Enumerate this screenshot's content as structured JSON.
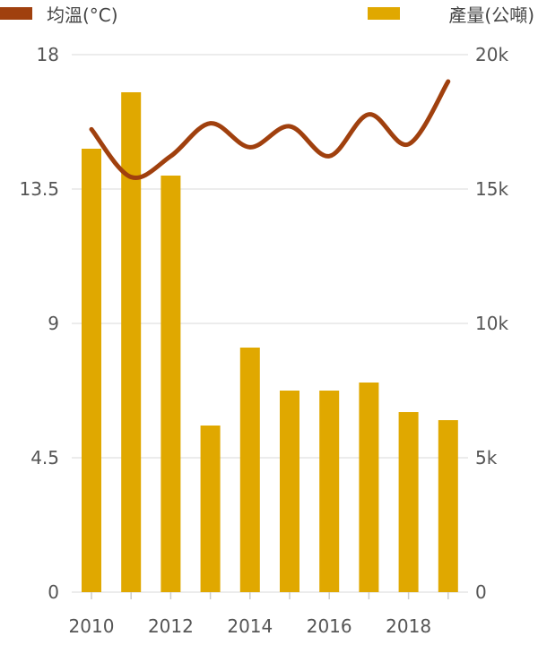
{
  "chart_data": {
    "type": "bar+line",
    "categories": [
      "2010",
      "2011",
      "2012",
      "2013",
      "2014",
      "2015",
      "2016",
      "2017",
      "2018",
      "2019"
    ],
    "x_tick_labels": [
      "2010",
      "2012",
      "2014",
      "2016",
      "2018"
    ],
    "series": [
      {
        "name": "產量(公噸)",
        "type": "bar",
        "axis": "right",
        "color": "#E0A800",
        "values": [
          16500,
          18600,
          15500,
          6200,
          9100,
          7500,
          7500,
          7800,
          6700,
          6400
        ]
      },
      {
        "name": "均溫(°C)",
        "type": "line",
        "axis": "left",
        "color": "#A0400E",
        "values": [
          15.5,
          13.9,
          14.6,
          15.7,
          14.9,
          15.6,
          14.6,
          16.0,
          15.0,
          17.1
        ]
      }
    ],
    "left_axis": {
      "ticks": [
        "0",
        "4.5",
        "9",
        "13.5",
        "18"
      ],
      "range": [
        0,
        18
      ]
    },
    "right_axis": {
      "ticks": [
        "0",
        "5k",
        "10k",
        "15k",
        "20k"
      ],
      "range": [
        0,
        20000
      ]
    },
    "grid": true,
    "legend_position": "top"
  }
}
